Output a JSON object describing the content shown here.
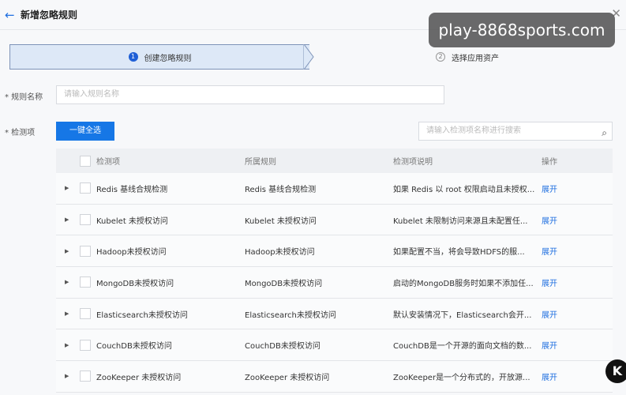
{
  "header": {
    "title": "新增忽略规则"
  },
  "steps": [
    {
      "num": "1",
      "label": "创建忽略规则"
    },
    {
      "num": "2",
      "label": "选择应用资产"
    }
  ],
  "form": {
    "name_label": "* 规则名称",
    "name_placeholder": "请输入规则名称",
    "items_label": "* 检测项",
    "select_all": "一键全选",
    "search_placeholder": "请输入检测项名称进行搜索"
  },
  "table": {
    "headers": [
      "检测项",
      "所属规则",
      "检测项说明",
      "操作"
    ],
    "rows": [
      {
        "item": "Redis 基线合规检测",
        "rule": "Redis 基线合规检测",
        "desc": "如果 Redis 以 root 权限启动且未授权...",
        "action": "展开"
      },
      {
        "item": "Kubelet 未授权访问",
        "rule": "Kubelet 未授权访问",
        "desc": "Kubelet 未限制访问来源且未配置任...",
        "action": "展开"
      },
      {
        "item": "Hadoop未授权访问",
        "rule": "Hadoop未授权访问",
        "desc": "如果配置不当，将会导致HDFS的服...",
        "action": "展开"
      },
      {
        "item": "MongoDB未授权访问",
        "rule": "MongoDB未授权访问",
        "desc": "启动的MongoDB服务时如果不添加任...",
        "action": "展开"
      },
      {
        "item": "Elasticsearch未授权访问",
        "rule": "Elasticsearch未授权访问",
        "desc": "默认安装情况下，Elasticsearch会开...",
        "action": "展开"
      },
      {
        "item": "CouchDB未授权访问",
        "rule": "CouchDB未授权访问",
        "desc": "CouchDB是一个开源的面向文档的数...",
        "action": "展开"
      },
      {
        "item": "ZooKeeper 未授权访问",
        "rule": "ZooKeeper 未授权访问",
        "desc": "ZooKeeper是一个分布式的，开放源...",
        "action": "展开"
      }
    ]
  },
  "watermark": "play-8868sports.com",
  "badge": "K",
  "colors": {
    "primary": "#1677e6",
    "link": "#1f6fe0"
  }
}
